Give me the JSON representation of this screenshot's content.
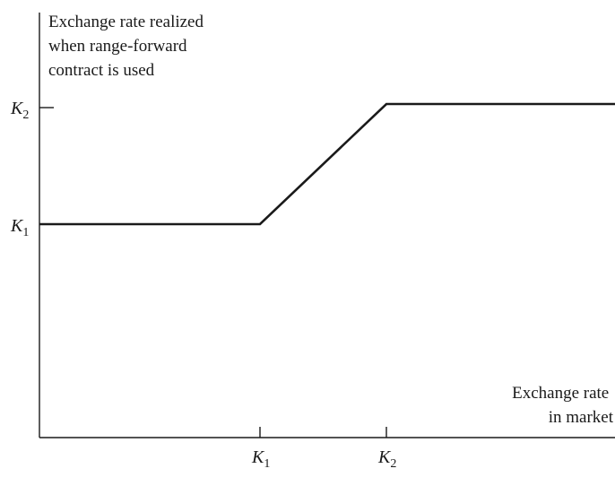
{
  "chart_data": {
    "type": "line",
    "ylabel_lines": [
      "Exchange rate realized",
      "when range-forward",
      "contract is used"
    ],
    "xlabel_lines": [
      "Exchange rate",
      "in market"
    ],
    "x_ticks": [
      {
        "key": "K1",
        "symbol": "K",
        "sub": "1"
      },
      {
        "key": "K2",
        "symbol": "K",
        "sub": "2"
      }
    ],
    "y_ticks": [
      {
        "key": "K1",
        "symbol": "K",
        "sub": "1"
      },
      {
        "key": "K2",
        "symbol": "K",
        "sub": "2"
      }
    ],
    "series": [
      {
        "points": [
          {
            "x": "0",
            "y": "K1"
          },
          {
            "x": "K1",
            "y": "K1"
          },
          {
            "x": "K2",
            "y": "K2"
          },
          {
            "x": "max",
            "y": "K2"
          }
        ]
      }
    ],
    "grid": false
  }
}
